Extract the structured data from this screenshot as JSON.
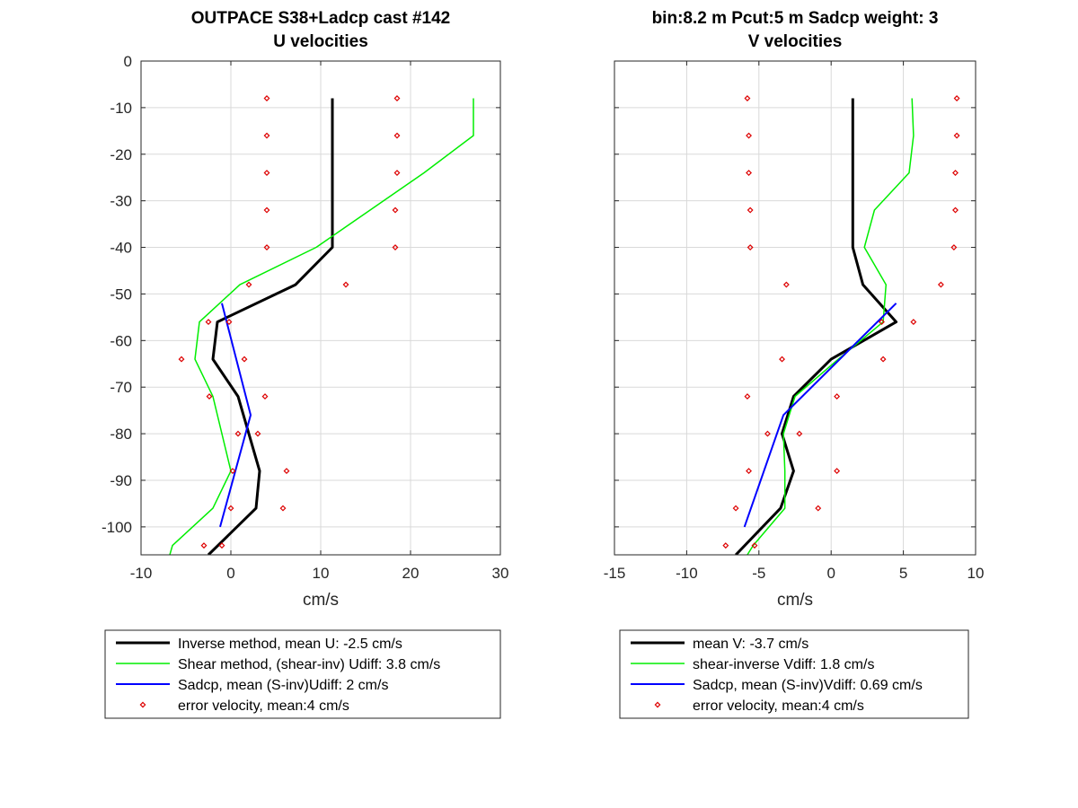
{
  "chart_data": [
    {
      "type": "line",
      "title": [
        "OUTPACE S38+Ladcp cast #142",
        "U velocities"
      ],
      "xlabel": "cm/s",
      "ylabel": "",
      "xlim": [
        -10,
        30
      ],
      "ylim": [
        -106,
        0
      ],
      "xticks": [
        -10,
        0,
        10,
        20,
        30
      ],
      "yticks": [
        0,
        -10,
        -20,
        -30,
        -40,
        -50,
        -60,
        -70,
        -80,
        -90,
        -100
      ],
      "grid": true,
      "legend_placement": "below",
      "legend": [
        "Inverse method, mean U:  -2.5 cm/s",
        "Shear method, (shear-inv)  Udiff:  3.8 cm/s",
        "Sadcp, mean (S-inv)Udiff: 2 cm/s",
        "error velocity, mean:4 cm/s"
      ],
      "series": [
        {
          "color": "#000000",
          "width": 3,
          "x": [
            11.3,
            11.3,
            11.3,
            11.3,
            11.3,
            7.2,
            -1.5,
            -2.0,
            0.8,
            3.2,
            2.8,
            -2.5
          ],
          "y": [
            -8,
            -16,
            -24,
            -32,
            -40,
            -48,
            -56,
            -64,
            -72,
            -88,
            -96,
            -106
          ]
        },
        {
          "color": "#00ee00",
          "width": 1.5,
          "x": [
            27.0,
            27.0,
            21.5,
            15.5,
            9.5,
            1.0,
            -3.5,
            -4.0,
            -2.0,
            0.0,
            -2.0,
            -6.5,
            -6.8
          ],
          "y": [
            -8,
            -16,
            -24,
            -32,
            -40,
            -48,
            -56,
            -64,
            -72,
            -88,
            -96,
            -104,
            -106
          ]
        },
        {
          "color": "#0000ff",
          "width": 2,
          "x": [
            -1.0,
            2.2,
            -1.2
          ],
          "y": [
            -52,
            -76,
            -100
          ]
        }
      ],
      "errors": {
        "color": "#dd0000",
        "points": [
          [
            4.0,
            -8
          ],
          [
            18.5,
            -8
          ],
          [
            4.0,
            -16
          ],
          [
            18.5,
            -16
          ],
          [
            4.0,
            -24
          ],
          [
            18.5,
            -24
          ],
          [
            4.0,
            -32
          ],
          [
            18.3,
            -32
          ],
          [
            4.0,
            -40
          ],
          [
            18.3,
            -40
          ],
          [
            2.0,
            -48
          ],
          [
            12.8,
            -48
          ],
          [
            -2.5,
            -56
          ],
          [
            -0.2,
            -56
          ],
          [
            -5.5,
            -64
          ],
          [
            1.5,
            -64
          ],
          [
            -2.4,
            -72
          ],
          [
            3.8,
            -72
          ],
          [
            0.8,
            -80
          ],
          [
            3.0,
            -80
          ],
          [
            0.2,
            -88
          ],
          [
            6.2,
            -88
          ],
          [
            0.0,
            -96
          ],
          [
            5.8,
            -96
          ],
          [
            -3.0,
            -104
          ],
          [
            -1.0,
            -104
          ]
        ]
      }
    },
    {
      "type": "line",
      "title": [
        "bin:8.2 m  Pcut:5 m  Sadcp weight: 3",
        "V velocities"
      ],
      "xlabel": "cm/s",
      "ylabel": "",
      "xlim": [
        -15,
        10
      ],
      "ylim": [
        -106,
        0
      ],
      "xticks": [
        -15,
        -10,
        -5,
        0,
        5,
        10
      ],
      "yticks": [
        0,
        -10,
        -20,
        -30,
        -40,
        -50,
        -60,
        -70,
        -80,
        -90,
        -100
      ],
      "grid": true,
      "legend_placement": "below",
      "legend": [
        "mean V:  -3.7 cm/s",
        "shear-inverse Vdiff:  1.8 cm/s",
        "Sadcp, mean (S-inv)Vdiff: 0.69 cm/s",
        "error velocity, mean:4 cm/s"
      ],
      "series": [
        {
          "color": "#000000",
          "width": 3,
          "x": [
            1.5,
            1.5,
            1.5,
            1.5,
            1.5,
            2.2,
            4.5,
            0.0,
            -2.6,
            -3.4,
            -2.6,
            -3.5,
            -6.6
          ],
          "y": [
            -8,
            -16,
            -24,
            -32,
            -40,
            -48,
            -56,
            -64,
            -72,
            -80,
            -88,
            -96,
            -106
          ]
        },
        {
          "color": "#00ee00",
          "width": 1.5,
          "x": [
            5.6,
            5.7,
            5.4,
            3.0,
            2.3,
            3.8,
            3.6,
            0.5,
            -2.5,
            -3.3,
            -3.2,
            -3.2,
            -5.4,
            -5.8
          ],
          "y": [
            -8,
            -16,
            -24,
            -32,
            -40,
            -48,
            -56,
            -64,
            -72,
            -80,
            -88,
            -96,
            -104,
            -106
          ]
        },
        {
          "color": "#0000ff",
          "width": 2,
          "x": [
            4.5,
            -3.3,
            -6.0
          ],
          "y": [
            -52,
            -76,
            -100
          ]
        }
      ],
      "errors": {
        "color": "#dd0000",
        "points": [
          [
            -5.8,
            -8
          ],
          [
            8.7,
            -8
          ],
          [
            -5.7,
            -16
          ],
          [
            8.7,
            -16
          ],
          [
            -5.7,
            -24
          ],
          [
            8.6,
            -24
          ],
          [
            -5.6,
            -32
          ],
          [
            8.6,
            -32
          ],
          [
            -5.6,
            -40
          ],
          [
            8.5,
            -40
          ],
          [
            -3.1,
            -48
          ],
          [
            7.6,
            -48
          ],
          [
            3.5,
            -56
          ],
          [
            5.7,
            -56
          ],
          [
            -3.4,
            -64
          ],
          [
            3.6,
            -64
          ],
          [
            -5.8,
            -72
          ],
          [
            0.4,
            -72
          ],
          [
            -4.4,
            -80
          ],
          [
            -2.2,
            -80
          ],
          [
            -5.7,
            -88
          ],
          [
            0.4,
            -88
          ],
          [
            -6.6,
            -96
          ],
          [
            -0.9,
            -96
          ],
          [
            -7.3,
            -104
          ],
          [
            -5.3,
            -104
          ]
        ]
      }
    }
  ]
}
